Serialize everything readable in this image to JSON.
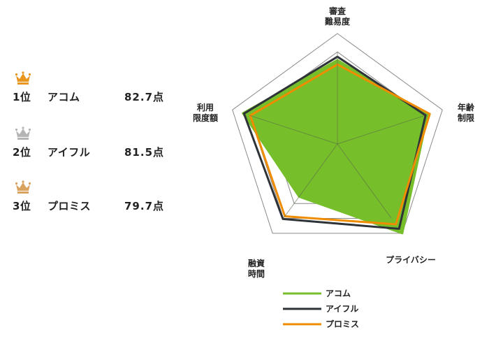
{
  "ranking": [
    {
      "position": "1位",
      "name": "アコム",
      "score": "82.7点",
      "crown_color": "#e8961e"
    },
    {
      "position": "2位",
      "name": "アイフル",
      "score": "81.5点",
      "crown_color": "#b4b4b4"
    },
    {
      "position": "3位",
      "name": "プロミス",
      "score": "79.7点",
      "crown_color": "#d9a25e"
    }
  ],
  "chart_data": {
    "type": "radar",
    "axes": [
      {
        "lines": [
          "審査",
          "難易度"
        ]
      },
      {
        "lines": [
          "年齢",
          "制限"
        ]
      },
      {
        "lines": [
          "プライバシー"
        ]
      },
      {
        "lines": [
          "融資",
          "時間"
        ]
      },
      {
        "lines": [
          "利用",
          "限度額"
        ]
      }
    ],
    "range": [
      0,
      100
    ],
    "rings": 6,
    "series": [
      {
        "name": "アコム",
        "color": "#76be2a",
        "fill": true,
        "values": [
          76,
          86,
          100,
          59,
          90
        ]
      },
      {
        "name": "アイフル",
        "color": "#2e3338",
        "fill": false,
        "values": [
          79,
          84,
          95,
          84,
          89
        ]
      },
      {
        "name": "プロミス",
        "color": "#f08c00",
        "fill": false,
        "values": [
          72,
          88,
          90,
          81,
          83
        ]
      }
    ],
    "legend": "bottom"
  }
}
